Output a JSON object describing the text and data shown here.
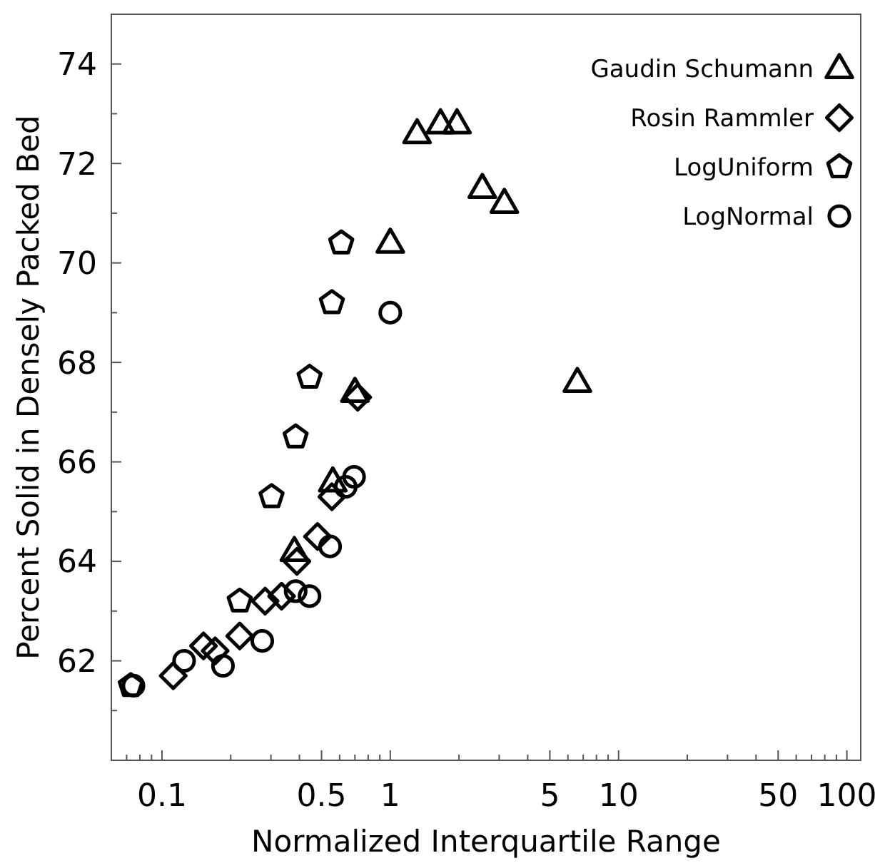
{
  "chart_data": {
    "type": "scatter",
    "xlabel": "Normalized Interquartile Range",
    "ylabel": "Percent Solid in Densely Packed Bed",
    "log": "x",
    "grid": false,
    "legend": "top right",
    "xlim": [
      0.06,
      115
    ],
    "ylim": [
      60,
      75
    ],
    "xticks": [
      {
        "value": 0.07,
        "label": null
      },
      {
        "value": 0.08,
        "label": null
      },
      {
        "value": 0.09,
        "label": null
      },
      0.1,
      {
        "value": 0.2,
        "label": null
      },
      {
        "value": 0.3,
        "label": null
      },
      {
        "value": 0.4,
        "label": null
      },
      0.5,
      {
        "value": 0.6,
        "label": null
      },
      {
        "value": 0.7,
        "label": null
      },
      {
        "value": 0.8,
        "label": null
      },
      {
        "value": 0.9,
        "label": null
      },
      1,
      {
        "value": 2,
        "label": null
      },
      {
        "value": 3,
        "label": null
      },
      {
        "value": 4,
        "label": null
      },
      5,
      {
        "value": 6,
        "label": null
      },
      {
        "value": 7,
        "label": null
      },
      {
        "value": 8,
        "label": null
      },
      {
        "value": 9,
        "label": null
      },
      10,
      {
        "value": 20,
        "label": null
      },
      {
        "value": 30,
        "label": null
      },
      {
        "value": 40,
        "label": null
      },
      50,
      {
        "value": 60,
        "label": null
      },
      {
        "value": 70,
        "label": null
      },
      {
        "value": 80,
        "label": null
      },
      {
        "value": 90,
        "label": null
      },
      100
    ],
    "yticks": [
      {
        "value": 61,
        "label": null
      },
      62,
      {
        "value": 63,
        "label": null
      },
      64,
      {
        "value": 65,
        "label": null
      },
      66,
      {
        "value": 67,
        "label": null
      },
      68,
      {
        "value": 69,
        "label": null
      },
      70,
      {
        "value": 71,
        "label": null
      },
      72,
      {
        "value": 73,
        "label": null
      },
      74
    ],
    "series": [
      {
        "name": "Gaudin Schumann",
        "color": "#000000",
        "marker": "triangle",
        "x": [
          0.38,
          0.56,
          0.7,
          1.0,
          1.31,
          1.66,
          1.96,
          2.53,
          3.16,
          6.6
        ],
        "values": [
          64.2,
          65.6,
          67.4,
          70.4,
          72.6,
          72.8,
          72.8,
          71.5,
          71.2,
          67.6
        ]
      },
      {
        "name": "Rosin Rammler",
        "color": "#000000",
        "marker": "diamond",
        "x": [
          0.112,
          0.152,
          0.171,
          0.219,
          0.283,
          0.334,
          0.39,
          0.48,
          0.555,
          0.72
        ],
        "values": [
          61.7,
          62.3,
          62.2,
          62.5,
          63.2,
          63.3,
          64.0,
          64.5,
          65.3,
          67.3
        ]
      },
      {
        "name": "LogUniform",
        "color": "#000000",
        "x": [
          0.073,
          0.219,
          0.302,
          0.385,
          0.443,
          0.555,
          0.61
        ],
        "values": [
          61.5,
          63.2,
          65.3,
          66.5,
          67.7,
          69.2,
          70.4
        ]
      },
      {
        "name": "LogNormal",
        "color": "#000000",
        "marker": "circle",
        "x": [
          0.075,
          0.125,
          0.185,
          0.275,
          0.385,
          0.443,
          0.545,
          0.638,
          0.694,
          1.0
        ],
        "values": [
          61.5,
          62.0,
          61.9,
          62.4,
          63.4,
          63.3,
          64.3,
          65.5,
          65.7,
          69.0
        ]
      }
    ]
  }
}
